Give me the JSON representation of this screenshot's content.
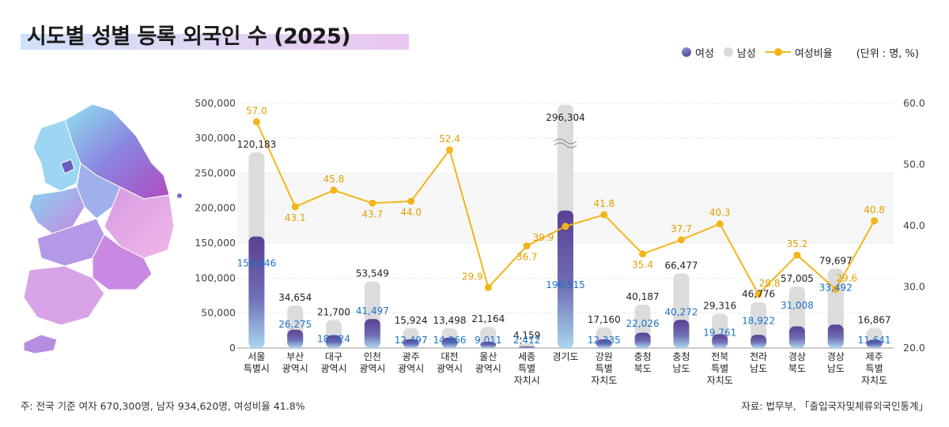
{
  "title": "시도별 성별 등록 외국인 수 (2025)",
  "legend": {
    "female": "여성",
    "male": "남성",
    "ratio": "여성비율"
  },
  "unit": "(단위 : 명, %)",
  "footnote": "주: 전국 기준 여자 670,300명, 남자 934,620명, 여성비율 41.8%",
  "source": "자료: 법무부, 「출입국자및체류외국인통계」",
  "colors": {
    "female_top": "#5b3f93",
    "female_bottom": "#a9d6ee",
    "male": "#dcdcdc",
    "ratio": "#f2b619",
    "female_label": "#1a73c9",
    "ratio_label": "#e0a000"
  },
  "chart_data": {
    "type": "bar",
    "stacked": false,
    "categories": [
      [
        "서울",
        "특별시"
      ],
      [
        "부산",
        "광역시"
      ],
      [
        "대구",
        "광역시"
      ],
      [
        "인천",
        "광역시"
      ],
      [
        "광주",
        "광역시"
      ],
      [
        "대전",
        "광역시"
      ],
      [
        "울산",
        "광역시"
      ],
      [
        "세종",
        "특별",
        "자치시"
      ],
      [
        "경기도"
      ],
      [
        "강원",
        "특별",
        "자치도"
      ],
      [
        "충청",
        "북도"
      ],
      [
        "충청",
        "남도"
      ],
      [
        "전북",
        "특별",
        "자치도"
      ],
      [
        "전라",
        "남도"
      ],
      [
        "경상",
        "북도"
      ],
      [
        "경상",
        "남도"
      ],
      [
        "제주",
        "특별",
        "자치도"
      ]
    ],
    "series": [
      {
        "name": "여성",
        "values": [
          159446,
          26275,
          18324,
          41497,
          12497,
          14866,
          9011,
          2412,
          196515,
          12335,
          22026,
          40272,
          19761,
          18922,
          31008,
          33492,
          11641
        ]
      },
      {
        "name": "남성",
        "values": [
          120183,
          34654,
          21700,
          53549,
          15924,
          13498,
          21164,
          4159,
          296304,
          17160,
          40187,
          66477,
          29316,
          46776,
          57005,
          79697,
          16867
        ]
      },
      {
        "name": "여성비율",
        "values": [
          57.0,
          43.1,
          45.8,
          43.7,
          44.0,
          52.4,
          29.9,
          36.7,
          39.9,
          41.8,
          35.4,
          37.7,
          40.3,
          28.8,
          35.2,
          29.6,
          40.8
        ]
      }
    ],
    "female_labels": [
      "159,446",
      "26,275",
      "18,324",
      "41,497",
      "12,497",
      "14,866",
      "9,011",
      "2,412",
      "196,515",
      "12,335",
      "22,026",
      "40,272",
      "19,761",
      "18,922",
      "31,008",
      "33,492",
      "11,641"
    ],
    "male_labels": [
      "120,183",
      "34,654",
      "21,700",
      "53,549",
      "15,924",
      "13,498",
      "21,164",
      "4,159",
      "296,304",
      "17,160",
      "40,187",
      "66,477",
      "29,316",
      "46,776",
      "57,005",
      "79,697",
      "16,867"
    ],
    "ratio_labels": [
      "57.0",
      "43.1",
      "45.8",
      "43.7",
      "44.0",
      "52.4",
      "29.9",
      "36.7",
      "39.9",
      "41.8",
      "35.4",
      "37.7",
      "40.3",
      "28.8",
      "35.2",
      "29.6",
      "40.8"
    ],
    "y_left": {
      "ticks": [
        "0",
        "50,000",
        "100,000",
        "150,000",
        "200,000",
        "250,000",
        "300,000",
        "500,000"
      ],
      "values": [
        0,
        50000,
        100000,
        150000,
        200000,
        250000,
        300000,
        500000
      ],
      "axis_break": [
        300000,
        500000
      ]
    },
    "y_right": {
      "ticks": [
        "20.0",
        "30.0",
        "40.0",
        "50.0",
        "60.0"
      ],
      "values": [
        20,
        30,
        40,
        50,
        60
      ],
      "ylim": [
        20,
        60
      ]
    },
    "grid": true
  }
}
